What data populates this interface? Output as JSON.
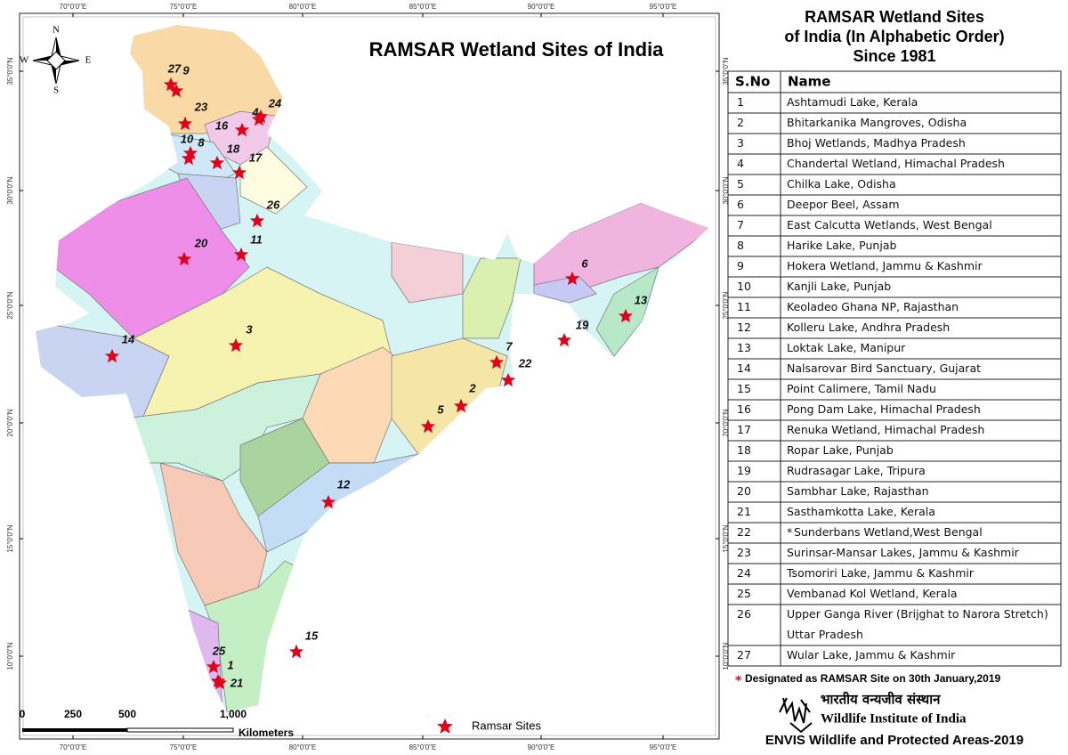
{
  "map": {
    "title": "RAMSAR Wetland Sites of India",
    "longitude_labels": [
      "70°0'0\"E",
      "75°0'0\"E",
      "80°0'0\"E",
      "85°0'0\"E",
      "90°0'0\"E",
      "95°0'0\"E"
    ],
    "latitude_labels": [
      "35°0'0\"N",
      "30°0'0\"N",
      "25°0'0\"N",
      "20°0'0\"N",
      "15°0'0\"N",
      "10°0'0\"N"
    ],
    "compass": {
      "n": "N",
      "e": "E",
      "s": "S",
      "w": "W"
    },
    "scale_labels": [
      "0",
      "250",
      "500",
      "1,000"
    ],
    "scale_unit": "Kilometers",
    "legend": "Ramsar Sites",
    "site_labels": [
      "27",
      "9",
      "23",
      "16",
      "4",
      "24",
      "10",
      "8",
      "18",
      "17",
      "26",
      "11",
      "20",
      "3",
      "14",
      "7",
      "22",
      "2",
      "5",
      "6",
      "13",
      "19",
      "12",
      "15",
      "25",
      "1",
      "21"
    ]
  },
  "panel": {
    "title": [
      "RAMSAR Wetland Sites",
      "of India (In Alphabetic Order)",
      "Since 1981"
    ],
    "table": {
      "header": [
        "S.No",
        "Name"
      ],
      "rows": [
        {
          "no": "1",
          "name": "Ashtamudi Lake, Kerala"
        },
        {
          "no": "2",
          "name": "Bhitarkanika Mangroves, Odisha"
        },
        {
          "no": "3",
          "name": "Bhoj Wetlands, Madhya Pradesh"
        },
        {
          "no": "4",
          "name": "Chandertal Wetland, Himachal Pradesh"
        },
        {
          "no": "5",
          "name": "Chilka Lake, Odisha"
        },
        {
          "no": "6",
          "name": "Deepor Beel, Assam"
        },
        {
          "no": "7",
          "name": "East Calcutta Wetlands, West Bengal"
        },
        {
          "no": "8",
          "name": "Harike Lake, Punjab"
        },
        {
          "no": "9",
          "name": "Hokera Wetland, Jammu & Kashmir"
        },
        {
          "no": "10",
          "name": "Kanjli Lake, Punjab"
        },
        {
          "no": "11",
          "name": "Keoladeo Ghana NP, Rajasthan"
        },
        {
          "no": "12",
          "name": "Kolleru Lake, Andhra Pradesh"
        },
        {
          "no": "13",
          "name": "Loktak Lake, Manipur"
        },
        {
          "no": "14",
          "name": "Nalsarovar Bird Sanctuary, Gujarat"
        },
        {
          "no": "15",
          "name": "Point Calimere, Tamil Nadu"
        },
        {
          "no": "16",
          "name": "Pong Dam Lake, Himachal Pradesh"
        },
        {
          "no": "17",
          "name": "Renuka Wetland, Himachal Pradesh"
        },
        {
          "no": "18",
          "name": "Ropar Lake, Punjab"
        },
        {
          "no": "19",
          "name": "Rudrasagar Lake, Tripura"
        },
        {
          "no": "20",
          "name": "Sambhar Lake, Rajasthan"
        },
        {
          "no": "21",
          "name": "Sasthamkotta Lake, Kerala"
        },
        {
          "no": "22",
          "mark": "*",
          "name": "Sunderbans Wetland,West Bengal"
        },
        {
          "no": "23",
          "name": "Surinsar-Mansar Lakes, Jammu & Kashmir"
        },
        {
          "no": "24",
          "name": "Tsomoriri Lake, Jammu & Kashmir"
        },
        {
          "no": "25",
          "name": "Vembanad Kol Wetland, Kerala"
        },
        {
          "no": "26",
          "name": [
            "Upper Ganga River (Brijghat to Narora Stretch)",
            "Uttar Pradesh"
          ]
        },
        {
          "no": "27",
          "name": "Wular Lake,  Jammu & Kashmir"
        }
      ]
    },
    "footnote": {
      "mark": "*",
      "text": "Designated as RAMSAR Site on 30th January,2019"
    },
    "logo": {
      "hindi": "भारतीय वन्यजीव संस्थान",
      "english": "Wildlife Institute of India",
      "caption": "ENVIS Wildlife and Protected Areas-2019"
    }
  }
}
